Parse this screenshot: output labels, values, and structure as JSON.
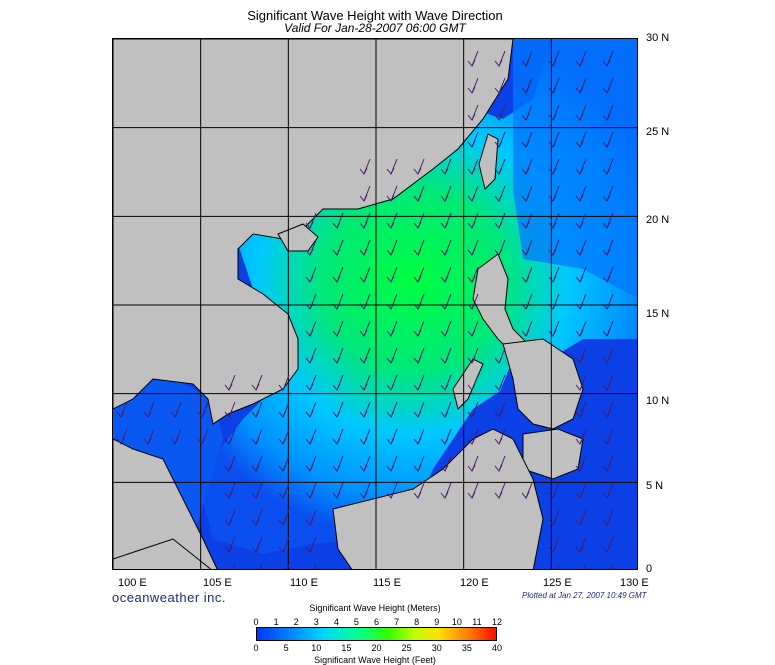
{
  "title": "Significant Wave Height with Wave Direction",
  "subtitle": "Valid For Jan-28-2007 06:00 GMT",
  "brand": "oceanweather inc.",
  "plotted": "Plotted at Jan 27, 2007 10:49 GMT",
  "lat_labels": [
    "30 N",
    "25 N",
    "20 N",
    "15 N",
    "10 N",
    "5 N",
    "0"
  ],
  "lon_labels": [
    "100 E",
    "105 E",
    "110 E",
    "115 E",
    "120 E",
    "125 E",
    "130 E"
  ],
  "scale": {
    "title_meters": "Significant Wave Height (Meters)",
    "title_feet": "Significant Wave Height (Feet)",
    "meters": [
      "0",
      "1",
      "2",
      "3",
      "4",
      "5",
      "6",
      "7",
      "8",
      "9",
      "10",
      "11",
      "12"
    ],
    "feet": [
      "0",
      "5",
      "10",
      "15",
      "20",
      "25",
      "30",
      "35",
      "40"
    ]
  },
  "colors": {
    "land": "#c0c0c0",
    "ocean_low": "#0a40e6",
    "ocean_mid": "#00c8ff",
    "ocean_high": "#00ff60",
    "arrow": "#4a1a6a",
    "grid": "#000000"
  }
}
